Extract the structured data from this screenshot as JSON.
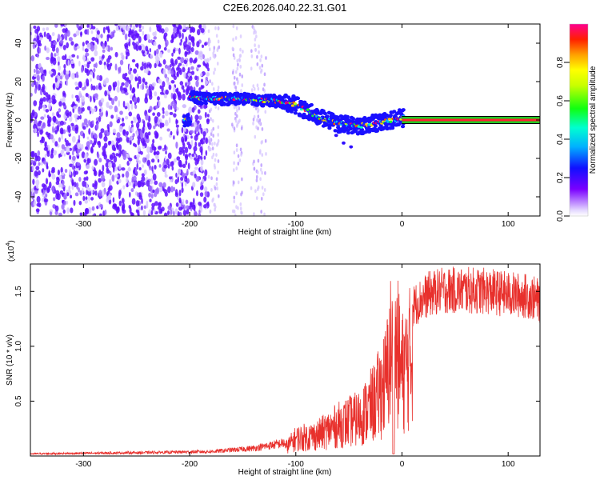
{
  "title": "C2E6.2026.040.22.31.G01",
  "colors": {
    "snr_line": "#e8302c",
    "spec_dark": "#6010ff",
    "spec_light": "#d8c8ff",
    "axis": "#000000"
  },
  "chart_data": [
    {
      "type": "heatmap",
      "name": "spectrogram",
      "xlabel": "Height of straight line (km)",
      "ylabel": "Frequency (Hz)",
      "xlim": [
        -350,
        130
      ],
      "ylim": [
        -50,
        50
      ],
      "xticks": [
        -300,
        -200,
        -100,
        0,
        100
      ],
      "yticks": [
        -40,
        -20,
        0,
        20,
        40
      ],
      "colorbar": {
        "label": "Normalized spectral amplitude",
        "range": [
          0.0,
          1.0
        ],
        "ticks": [
          0.0,
          0.2,
          0.4,
          0.6,
          0.8
        ],
        "colormap": "rainbow (violet-blue-cyan-green-yellow-red-magenta)"
      },
      "signal_track": [
        {
          "x": -200,
          "f": 12
        },
        {
          "x": -180,
          "f": 11
        },
        {
          "x": -150,
          "f": 11
        },
        {
          "x": -120,
          "f": 10
        },
        {
          "x": -100,
          "f": 8
        },
        {
          "x": -80,
          "f": 2
        },
        {
          "x": -60,
          "f": -2
        },
        {
          "x": -40,
          "f": -3
        },
        {
          "x": -20,
          "f": -1
        },
        {
          "x": 0,
          "f": 1
        },
        {
          "x": 130,
          "f": 0
        }
      ]
    },
    {
      "type": "line",
      "name": "snr",
      "xlabel": "Height of straight line (km)",
      "ylabel": "SNR (10 * v/v)",
      "yscale_label": "(x10",
      "yscale_exp": "4",
      "xlim": [
        -350,
        130
      ],
      "ylim": [
        0,
        1.75
      ],
      "xticks": [
        -300,
        -200,
        -100,
        0,
        100
      ],
      "yticks": [
        0.5,
        1.0,
        1.5
      ],
      "ytick_labels": [
        "0.5",
        "1.0",
        "1.5"
      ],
      "envelope": {
        "x": [
          -350,
          -250,
          -180,
          -140,
          -110,
          -100,
          -80,
          -60,
          -40,
          -25,
          -15,
          -10,
          -5,
          0,
          10,
          25,
          40,
          60,
          80,
          100,
          120,
          130
        ],
        "y": [
          0.02,
          0.03,
          0.04,
          0.07,
          0.12,
          0.25,
          0.3,
          0.45,
          0.55,
          0.8,
          1.1,
          1.6,
          1.55,
          1.2,
          1.5,
          1.62,
          1.66,
          1.66,
          1.65,
          1.62,
          1.6,
          1.55
        ]
      }
    }
  ]
}
